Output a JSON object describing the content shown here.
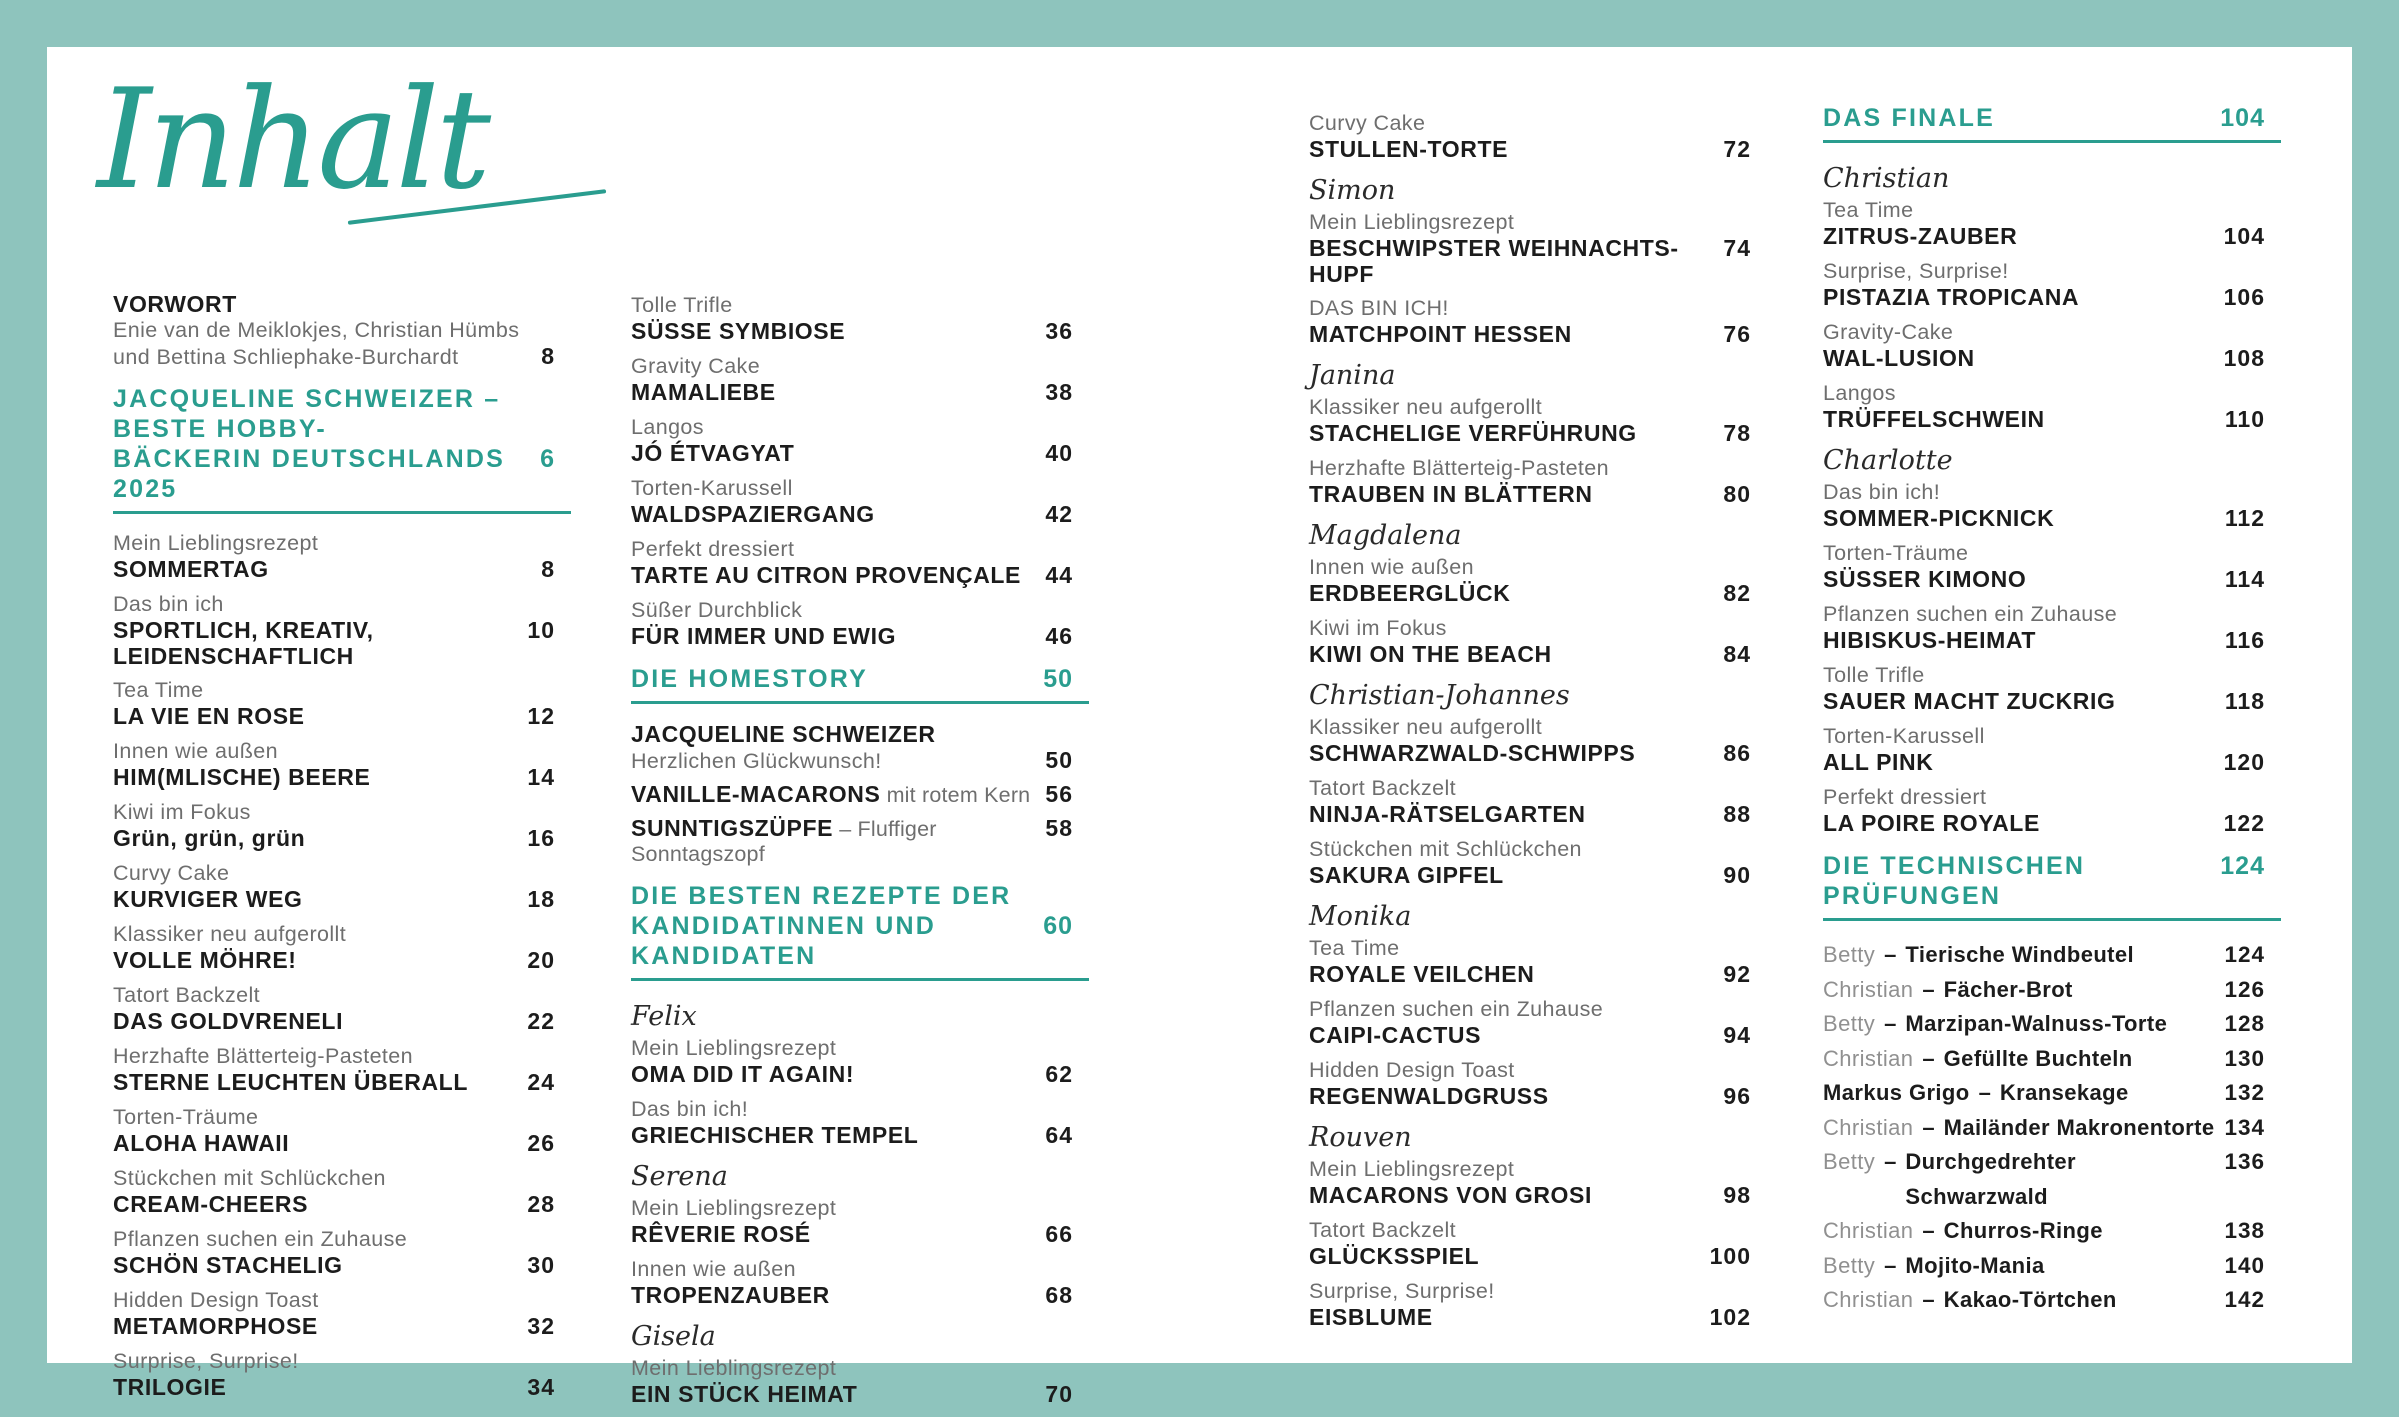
{
  "title": "Inhalt",
  "colors": {
    "frame": "#8ec4bd",
    "accent": "#2a9d8f",
    "text": "#1c1c1c",
    "muted": "#6e6e6e"
  },
  "columns": [
    {
      "items": [
        {
          "type": "intro",
          "title": "VORWORT",
          "lines": [
            "Enie van de Meiklokjes, Christian Hümbs",
            "und Bettina Schliephake-Burchardt"
          ],
          "page": "8"
        },
        {
          "type": "section",
          "lines": [
            "JACQUELINE SCHWEIZER – BESTE HOBBY-",
            "BÄCKERIN DEUTSCHLANDS 2025"
          ],
          "page": "6"
        },
        {
          "type": "entry",
          "category": "Mein Lieblingsrezept",
          "title": "SOMMERTAG",
          "page": "8"
        },
        {
          "type": "entry",
          "category": "Das bin ich",
          "title": "SPORTLICH, KREATIV, LEIDENSCHAFTLICH",
          "page": "10"
        },
        {
          "type": "entry",
          "category": "Tea Time",
          "title": "LA VIE EN ROSE",
          "page": "12"
        },
        {
          "type": "entry",
          "category": "Innen wie außen",
          "title": "HIM(MLISCHE) BEERE",
          "page": "14"
        },
        {
          "type": "entry",
          "category": "Kiwi im Fokus",
          "title": "Grün, grün, grün",
          "page": "16"
        },
        {
          "type": "entry",
          "category": "Curvy Cake",
          "title": "KURVIGER WEG",
          "page": "18"
        },
        {
          "type": "entry",
          "category": "Klassiker neu aufgerollt",
          "title": "VOLLE MÖHRE!",
          "page": "20"
        },
        {
          "type": "entry",
          "category": "Tatort Backzelt",
          "title": "DAS GOLDVRENELI",
          "page": "22"
        },
        {
          "type": "entry",
          "category": "Herzhafte Blätterteig-Pasteten",
          "title": "STERNE LEUCHTEN ÜBERALL",
          "page": "24"
        },
        {
          "type": "entry",
          "category": "Torten-Träume",
          "title": "ALOHA HAWAII",
          "page": "26"
        },
        {
          "type": "entry",
          "category": "Stückchen mit Schlückchen",
          "title": "CREAM-CHEERS",
          "page": "28"
        },
        {
          "type": "entry",
          "category": "Pflanzen suchen ein Zuhause",
          "title": "SCHÖN STACHELIG",
          "page": "30"
        },
        {
          "type": "entry",
          "category": "Hidden Design Toast",
          "title": "METAMORPHOSE",
          "page": "32"
        },
        {
          "type": "entry",
          "category": "Surprise, Surprise!",
          "title": "TRILOGIE",
          "page": "34"
        }
      ]
    },
    {
      "items": [
        {
          "type": "entry",
          "category": "Tolle Trifle",
          "title": "SÜSSE SYMBIOSE",
          "page": "36"
        },
        {
          "type": "entry",
          "category": "Gravity Cake",
          "title": "MAMALIEBE",
          "page": "38"
        },
        {
          "type": "entry",
          "category": "Langos",
          "title": "JÓ ÉTVAGYAT",
          "page": "40"
        },
        {
          "type": "entry",
          "category": "Torten-Karussell",
          "title": "WALDSPAZIERGANG",
          "page": "42"
        },
        {
          "type": "entry",
          "category": "Perfekt dressiert",
          "title": "TARTE AU CITRON PROVENÇALE",
          "page": "44"
        },
        {
          "type": "entry",
          "category": "Süßer Durchblick",
          "title": "FÜR IMMER UND EWIG",
          "page": "46"
        },
        {
          "type": "section",
          "lines": [
            "DIE HOMESTORY"
          ],
          "page": "50"
        },
        {
          "type": "entry_sub",
          "title": "JACQUELINE SCHWEIZER",
          "sub": "Herzlichen Glückwunsch!",
          "page": "50"
        },
        {
          "type": "entry_mixed",
          "title": "VANILLE-MACARONS",
          "suffix": " mit rotem Kern",
          "page": "56"
        },
        {
          "type": "entry_mixed",
          "title": "SUNNTIGSZÜPFE",
          "suffix": " – Fluffiger Sonntagszopf",
          "page": "58"
        },
        {
          "type": "section",
          "lines": [
            "DIE BESTEN REZEPTE DER",
            "KANDIDATINNEN UND KANDIDATEN"
          ],
          "page": "60"
        },
        {
          "type": "entry",
          "name": "Felix",
          "category": "Mein Lieblingsrezept",
          "title": "OMA DID IT AGAIN!",
          "page": "62"
        },
        {
          "type": "entry",
          "category": "Das bin ich!",
          "title": "GRIECHISCHER TEMPEL",
          "page": "64"
        },
        {
          "type": "entry",
          "name": "Serena",
          "category": "Mein Lieblingsrezept",
          "title": "RÊVERIE ROSÉ",
          "page": "66"
        },
        {
          "type": "entry",
          "category": "Innen wie außen",
          "title": "TROPENZAUBER",
          "page": "68"
        },
        {
          "type": "entry",
          "name": "Gisela",
          "category": "Mein Lieblingsrezept",
          "title": "EIN STÜCK HEIMAT",
          "page": "70"
        }
      ]
    },
    {
      "items": [
        {
          "type": "entry",
          "category": "Curvy Cake",
          "title": "STULLEN-TORTE",
          "page": "72"
        },
        {
          "type": "entry",
          "name": "Simon",
          "category": "Mein Lieblingsrezept",
          "title": "BESCHWIPSTER WEIHNACHTS-HUPF",
          "page": "74"
        },
        {
          "type": "entry",
          "category": "DAS BIN ICH!",
          "title": "MATCHPOINT HESSEN",
          "page": "76"
        },
        {
          "type": "entry",
          "name": "Janina",
          "category": "Klassiker neu aufgerollt",
          "title": "STACHELIGE VERFÜHRUNG",
          "page": "78"
        },
        {
          "type": "entry",
          "category": "Herzhafte Blätterteig-Pasteten",
          "title": "TRAUBEN IN BLÄTTERN",
          "page": "80"
        },
        {
          "type": "entry",
          "name": "Magdalena",
          "category": "Innen wie außen",
          "title": "ERDBEERGLÜCK",
          "page": "82"
        },
        {
          "type": "entry",
          "category": "Kiwi im Fokus",
          "title": "KIWI ON THE BEACH",
          "page": "84"
        },
        {
          "type": "entry",
          "name": "Christian-Johannes",
          "category": "Klassiker neu aufgerollt",
          "title": "SCHWARZWALD-SCHWIPPS",
          "page": "86"
        },
        {
          "type": "entry",
          "category": "Tatort Backzelt",
          "title": "NINJA-RÄTSELGARTEN",
          "page": "88"
        },
        {
          "type": "entry",
          "category": "Stückchen mit Schlückchen",
          "title": "SAKURA GIPFEL",
          "page": "90"
        },
        {
          "type": "entry",
          "name": "Monika",
          "category": "Tea Time",
          "title": "ROYALE VEILCHEN",
          "page": "92"
        },
        {
          "type": "entry",
          "category": "Pflanzen suchen ein Zuhause",
          "title": "CAIPI-CACTUS",
          "page": "94"
        },
        {
          "type": "entry",
          "category": "Hidden Design Toast",
          "title": "REGENWALDGRUSS",
          "page": "96"
        },
        {
          "type": "entry",
          "name": "Rouven",
          "category": "Mein Lieblingsrezept",
          "title": "MACARONS VON GROSI",
          "page": "98"
        },
        {
          "type": "entry",
          "category": "Tatort Backzelt",
          "title": "GLÜCKSSPIEL",
          "page": "100"
        },
        {
          "type": "entry",
          "category": "Surprise, Surprise!",
          "title": "EISBLUME",
          "page": "102"
        }
      ]
    },
    {
      "items": [
        {
          "type": "section",
          "lines": [
            "DAS FINALE"
          ],
          "page": "104"
        },
        {
          "type": "entry",
          "name": "Christian",
          "category": "Tea Time",
          "title": "ZITRUS-ZAUBER",
          "page": "104"
        },
        {
          "type": "entry",
          "category": "Surprise, Surprise!",
          "title": "PISTAZIA TROPICANA",
          "page": "106"
        },
        {
          "type": "entry",
          "category": "Gravity-Cake",
          "title": "WAL-LUSION",
          "page": "108"
        },
        {
          "type": "entry",
          "category": "Langos",
          "title": "TRÜFFELSCHWEIN",
          "page": "110"
        },
        {
          "type": "entry",
          "name": "Charlotte",
          "category": "Das bin ich!",
          "title": "SOMMER-PICKNICK",
          "page": "112"
        },
        {
          "type": "entry",
          "category": "Torten-Träume",
          "title": "SÜSSER KIMONO",
          "page": "114"
        },
        {
          "type": "entry",
          "category": "Pflanzen suchen ein Zuhause",
          "title": "HIBISKUS-HEIMAT",
          "page": "116"
        },
        {
          "type": "entry",
          "category": "Tolle Trifle",
          "title": "SAUER MACHT ZUCKRIG",
          "page": "118"
        },
        {
          "type": "entry",
          "category": "Torten-Karussell",
          "title": "ALL PINK",
          "page": "120"
        },
        {
          "type": "entry",
          "category": "Perfekt dressiert",
          "title": "LA POIRE ROYALE",
          "page": "122"
        },
        {
          "type": "section",
          "lines": [
            "DIE TECHNISCHEN PRÜFUNGEN"
          ],
          "page": "124"
        },
        {
          "type": "tech",
          "name": "Betty",
          "dish": "Tierische Windbeutel",
          "page": "124"
        },
        {
          "type": "tech",
          "name": "Christian",
          "dish": "Fächer-Brot",
          "page": "126"
        },
        {
          "type": "tech",
          "name": "Betty",
          "dish": "Marzipan-Walnuss-Torte",
          "page": "128"
        },
        {
          "type": "tech",
          "name": "Christian",
          "dish": "Gefüllte Buchteln",
          "page": "130"
        },
        {
          "type": "tech",
          "name": "Markus Grigo",
          "dish": "Kransekage",
          "page": "132",
          "black_name": true
        },
        {
          "type": "tech",
          "name": "Christian",
          "dish": "Mailänder Makronentorte",
          "page": "134"
        },
        {
          "type": "tech",
          "name": "Betty",
          "dish": "Durchgedrehter Schwarzwald",
          "page": "136"
        },
        {
          "type": "tech",
          "name": "Christian",
          "dish": "Churros-Ringe",
          "page": "138"
        },
        {
          "type": "tech",
          "name": "Betty",
          "dish": "Mojito-Mania",
          "page": "140"
        },
        {
          "type": "tech",
          "name": "Christian",
          "dish": "Kakao-Törtchen",
          "page": "142"
        }
      ]
    }
  ]
}
